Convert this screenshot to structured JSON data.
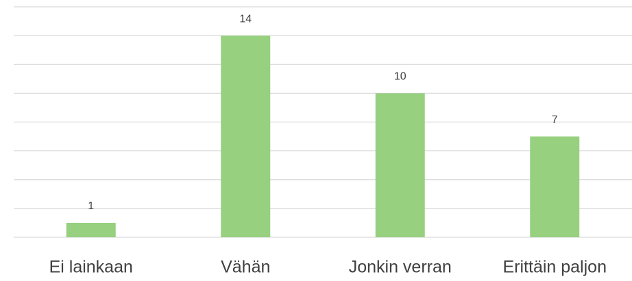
{
  "chart_data": {
    "type": "bar",
    "categories": [
      "Ei lainkaan",
      "Vähän",
      "Jonkin verran",
      "Erittäin paljon"
    ],
    "values": [
      1,
      14,
      10,
      7
    ],
    "color": "#97d07f",
    "ylim": [
      0,
      16
    ],
    "yticks": [
      0,
      2,
      4,
      6,
      8,
      10,
      12,
      14,
      16
    ],
    "grid": true
  }
}
